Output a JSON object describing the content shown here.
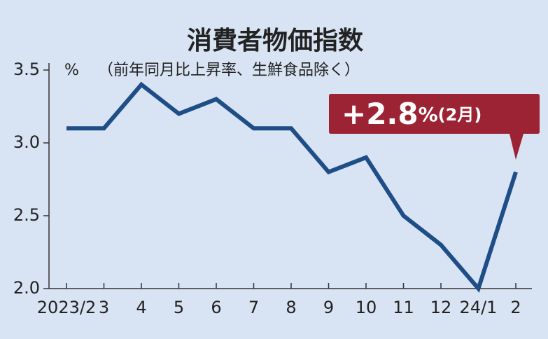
{
  "chart_data": {
    "type": "line",
    "title": "消費者物価指数",
    "y_label": "%",
    "subtitle": "（前年同月比上昇率、生鮮食品除く）",
    "annotation": {
      "value_text": "+2.8",
      "unit": "%",
      "period": "(2月)"
    },
    "categories": [
      "2023/2",
      "3",
      "4",
      "5",
      "6",
      "7",
      "8",
      "9",
      "10",
      "11",
      "12",
      "24/1",
      "2"
    ],
    "values": [
      3.1,
      3.1,
      3.4,
      3.2,
      3.3,
      3.1,
      3.1,
      2.8,
      2.9,
      2.5,
      2.3,
      2.0,
      2.8
    ],
    "color": "#1f4e86",
    "ylim": [
      2.0,
      3.5
    ],
    "yticks": [
      {
        "value": 2.0,
        "label": "2.0"
      },
      2.5,
      {
        "value": 3.0,
        "label": "3.0"
      },
      3.5
    ],
    "grid": false
  }
}
